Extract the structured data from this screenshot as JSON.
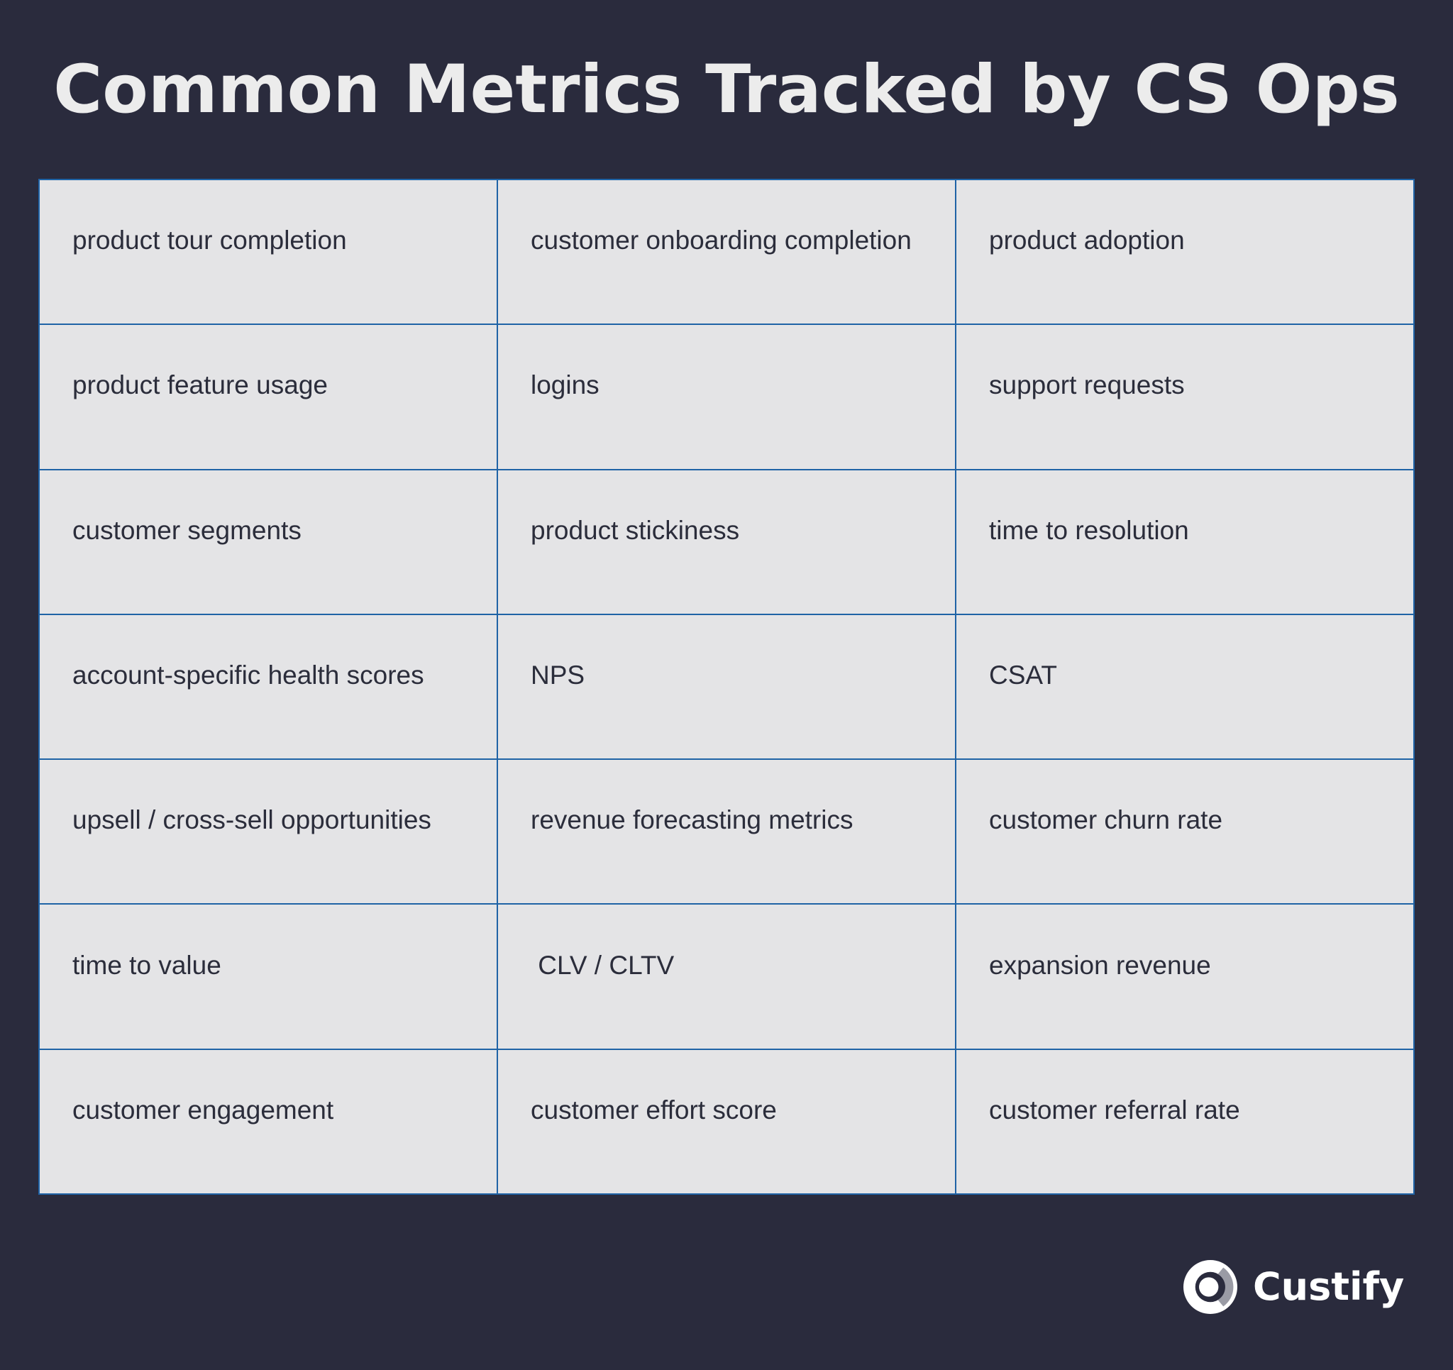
{
  "page": {
    "title": "Common Metrics Tracked by CS Ops",
    "background_color": "#2a2b3d",
    "title_color": "#ececec",
    "table_cell_color": "#e4e4e6",
    "table_border_color": "#1f63a6",
    "cell_text_color": "#2b2d3b"
  },
  "metrics_table": {
    "rows": [
      [
        "product tour completion",
        "customer onboarding completion",
        "product adoption"
      ],
      [
        "product feature usage",
        "logins",
        "support requests"
      ],
      [
        "customer segments",
        "product stickiness",
        "time to resolution"
      ],
      [
        "account-specific health scores",
        "NPS",
        "CSAT"
      ],
      [
        "upsell / cross-sell opportunities",
        "revenue forecasting metrics",
        "customer churn rate"
      ],
      [
        "time to value",
        " CLV / CLTV",
        "expansion revenue"
      ],
      [
        "customer engagement",
        "customer effort score",
        "customer referral rate"
      ]
    ]
  },
  "brand": {
    "name": "Custify",
    "icon": "custify-logo-icon"
  }
}
